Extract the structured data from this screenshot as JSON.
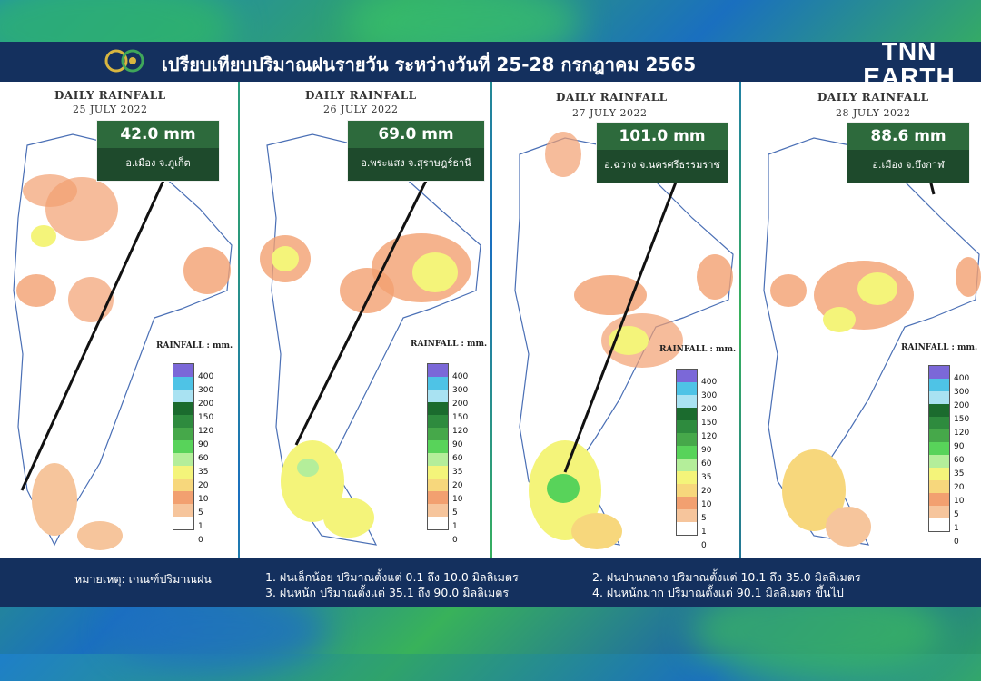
{
  "header": {
    "title": "เปรียบเทียบปริมาณฝนรายวัน ระหว่างวันที่ 25-28 กรกฎาคม 2565",
    "logo_text": "80",
    "brand_line1": "TNN",
    "brand_line2": "EARTH"
  },
  "panel_title": "DAILY RAINFALL",
  "legend_title": "RAINFALL : mm.",
  "legend": {
    "labels": [
      "400",
      "300",
      "200",
      "150",
      "120",
      "90",
      "60",
      "35",
      "20",
      "10",
      "5",
      "1",
      "0"
    ],
    "colors": [
      "#7b68d8",
      "#4ec3e6",
      "#a9e2f2",
      "#1b6b2e",
      "#2e8b3e",
      "#46a84a",
      "#58d35a",
      "#b4ee9a",
      "#f4f47a",
      "#f7d77c",
      "#f2a070",
      "#f6c59c",
      "#ffffff"
    ]
  },
  "panels": [
    {
      "date": "25 JULY  2022",
      "amount": "42.0 mm",
      "location": "อ.เมือง จ.ภูเก็ต"
    },
    {
      "date": "26 JULY  2022",
      "amount": "69.0 mm",
      "location": "อ.พระแสง จ.สุราษฎร์ธานี"
    },
    {
      "date": "27 JULY  2022",
      "amount": "101.0 mm",
      "location": "อ.ฉวาง จ.นครศรีธรรมราช"
    },
    {
      "date": "28 JULY  2022",
      "amount": "88.6 mm",
      "location": "อ.เมือง จ.บึงกาฬ"
    }
  ],
  "footer": {
    "note_label": "หมายเหตุ: เกณฑ์ปริมาณฝน",
    "items": [
      "1. ฝนเล็กน้อย ปริมาณตั้งแต่ 0.1 ถึง 10.0 มิลลิเมตร",
      "2. ฝนปานกลาง ปริมาณตั้งแต่ 10.1 ถึง 35.0 มิลลิเมตร",
      "3. ฝนหนัก ปริมาณตั้งแต่ 35.1 ถึง 90.0 มิลลิเมตร",
      "4. ฝนหนักมาก ปริมาณตั้งแต่ 90.1 มิลลิเมตร ขึ้นไป"
    ]
  }
}
